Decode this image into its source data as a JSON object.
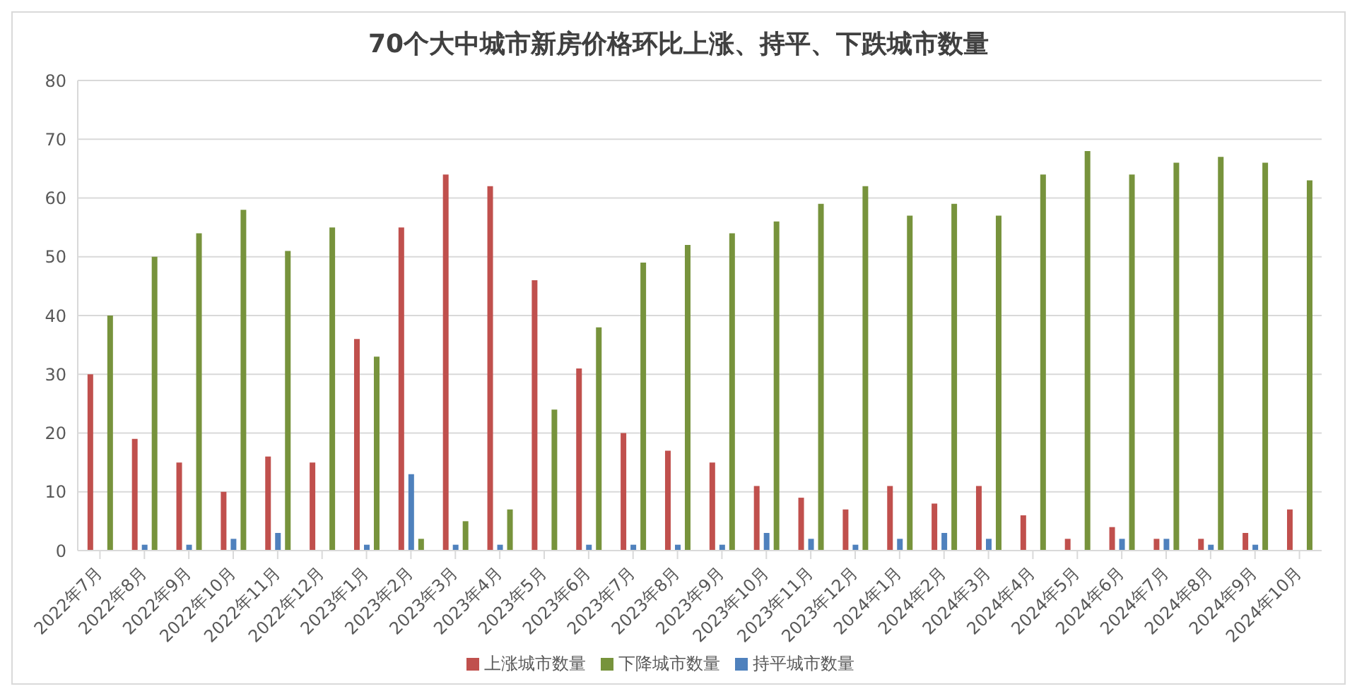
{
  "chart_data": {
    "type": "bar",
    "title": "70个大中城市新房价格环比上涨、持平、下跌城市数量",
    "categories": [
      "2022年7月",
      "2022年8月",
      "2022年9月",
      "2022年10月",
      "2022年11月",
      "2022年12月",
      "2023年1月",
      "2023年2月",
      "2023年3月",
      "2023年4月",
      "2023年5月",
      "2023年6月",
      "2023年7月",
      "2023年8月",
      "2023年9月",
      "2023年10月",
      "2023年11月",
      "2023年12月",
      "2024年1月",
      "2024年2月",
      "2024年3月",
      "2024年4月",
      "2024年5月",
      "2024年6月",
      "2024年7月",
      "2024年8月",
      "2024年9月",
      "2024年10月"
    ],
    "series": [
      {
        "name": "上涨城市数量",
        "color": "#c0504d",
        "values": [
          30,
          19,
          15,
          10,
          16,
          15,
          36,
          55,
          64,
          62,
          46,
          31,
          20,
          17,
          15,
          11,
          9,
          7,
          11,
          8,
          11,
          6,
          2,
          4,
          2,
          2,
          3,
          7
        ]
      },
      {
        "name": "持平城市数量",
        "color": "#4f81bd",
        "values": [
          0,
          1,
          1,
          2,
          3,
          0,
          1,
          13,
          1,
          1,
          0,
          1,
          1,
          1,
          1,
          3,
          2,
          1,
          2,
          3,
          2,
          0,
          0,
          2,
          2,
          1,
          1,
          0
        ]
      },
      {
        "name": "下降城市数量",
        "color": "#77933c",
        "values": [
          40,
          50,
          54,
          58,
          51,
          55,
          33,
          2,
          5,
          7,
          24,
          38,
          49,
          52,
          54,
          56,
          59,
          62,
          57,
          59,
          57,
          64,
          68,
          64,
          66,
          67,
          66,
          63
        ]
      }
    ],
    "ylim": [
      0,
      80
    ],
    "yticks": [
      0,
      10,
      20,
      30,
      40,
      50,
      60,
      70,
      80
    ],
    "grid": "y",
    "legend": "bottom"
  }
}
